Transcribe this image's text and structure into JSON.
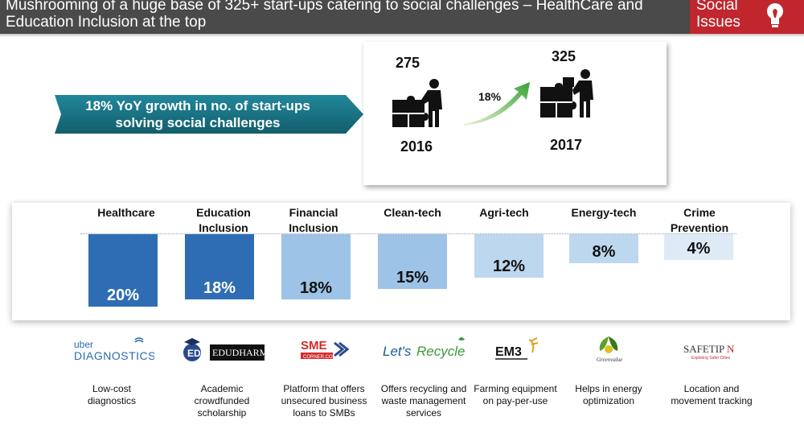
{
  "header": {
    "title": "Mushrooming of a huge base of 325+ start-ups catering to social challenges – HealthCare and Education Inclusion at the top",
    "badge": "Social Issues"
  },
  "growth": {
    "text": "18% YoY growth in no. of start-ups solving social challenges"
  },
  "stats": {
    "y2016": {
      "count": "275",
      "year": "2016"
    },
    "y2017": {
      "count": "325",
      "year": "2017"
    },
    "growth_label": "18%"
  },
  "chart_data": {
    "type": "bar",
    "title": "",
    "categories": [
      "Healthcare",
      "Education Inclusion",
      "Financial Inclusion",
      "Clean-tech",
      "Agri-tech",
      "Energy-tech",
      "Crime Prevention"
    ],
    "values": [
      20,
      18,
      18,
      15,
      12,
      8,
      4
    ],
    "value_labels": [
      "20%",
      "18%",
      "18%",
      "15%",
      "12%",
      "8%",
      "4%"
    ],
    "ylim": [
      0,
      20
    ],
    "colors": [
      "#2e6db3",
      "#2e6db3",
      "#9dc3e6",
      "#9dc3e6",
      "#bdd7ee",
      "#bdd7ee",
      "#deebf7"
    ],
    "label_colors": [
      "#ffffff",
      "#ffffff",
      "#111111",
      "#111111",
      "#111111",
      "#111111",
      "#111111"
    ]
  },
  "companies": [
    {
      "logo": "uber DIAGNOSTICS",
      "desc": "Low-cost diagnostics"
    },
    {
      "logo": "EDUDHARMA",
      "desc": "Academic crowdfunded scholarship"
    },
    {
      "logo": "SME CORNER.COM",
      "desc": "Platform that offers unsecured business loans to SMBs"
    },
    {
      "logo": "Let's Recycle",
      "desc": "Offers recycling and waste management services"
    },
    {
      "logo": "EM3",
      "desc": "Farming equipment on pay-per-use"
    },
    {
      "logo": "Greenvalue",
      "desc": "Helps in energy optimization"
    },
    {
      "logo": "SAFETIPIN",
      "desc": "Location and movement tracking"
    }
  ],
  "colors": {
    "header": "#4a4a4a",
    "badge": "#c0262c",
    "teal": "#1a7a8c"
  }
}
